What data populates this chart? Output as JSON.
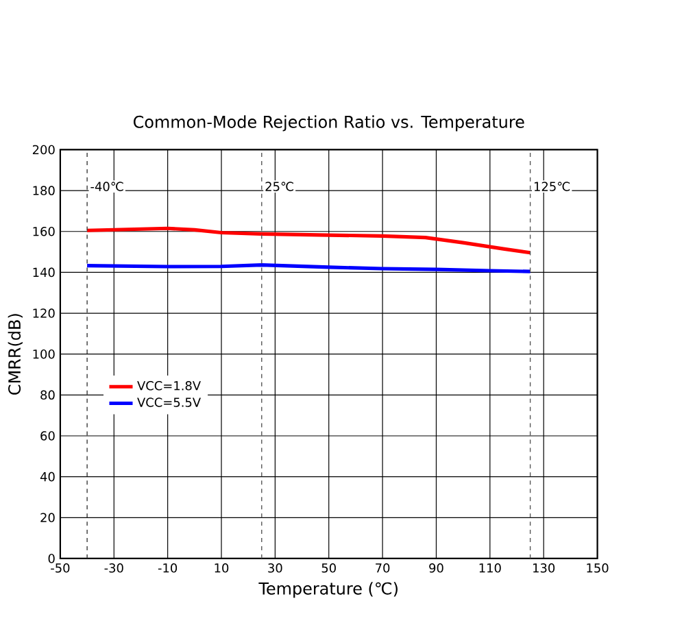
{
  "chart_data": {
    "type": "line",
    "title": "Common-Mode Rejection Ratio  vs. Temperature",
    "xlabel": "Temperature (℃)",
    "ylabel": "CMRR(dB)",
    "xlim": [
      -50,
      150
    ],
    "xticks": [
      -50,
      -30,
      -10,
      10,
      30,
      50,
      70,
      90,
      110,
      130,
      150
    ],
    "ylim": [
      0,
      200
    ],
    "yticks": [
      0,
      20,
      40,
      60,
      80,
      100,
      120,
      140,
      160,
      180,
      200
    ],
    "grid": true,
    "legend": "left",
    "line_style": "solid",
    "marker": "none",
    "ref_lines": [
      {
        "axis": "x",
        "value": -40,
        "label": "-40℃",
        "color": "#333333",
        "line_style": "dashed"
      },
      {
        "axis": "x",
        "value": 25,
        "label": "25℃",
        "color": "#555555",
        "line_style": "dashed"
      },
      {
        "axis": "x",
        "value": 125,
        "label": "125℃",
        "color": "#555555",
        "line_style": "dashed"
      }
    ],
    "series": [
      {
        "name": "VCC=1.8V",
        "color": "#ff0000",
        "x": [
          -40,
          -25,
          -10,
          0,
          10,
          25,
          50,
          70,
          86,
          100,
          115,
          125
        ],
        "values": [
          160.5,
          161,
          161.5,
          160.8,
          159.4,
          158.8,
          158.2,
          157.8,
          157,
          154.5,
          151.5,
          149.6
        ]
      },
      {
        "name": "VCC=5.5V",
        "color": "#0000ff",
        "x": [
          -40,
          -10,
          10,
          25,
          50,
          70,
          90,
          110,
          125
        ],
        "values": [
          143.3,
          142.8,
          142.9,
          143.6,
          142.5,
          141.8,
          141.4,
          140.8,
          140.4
        ]
      }
    ]
  }
}
